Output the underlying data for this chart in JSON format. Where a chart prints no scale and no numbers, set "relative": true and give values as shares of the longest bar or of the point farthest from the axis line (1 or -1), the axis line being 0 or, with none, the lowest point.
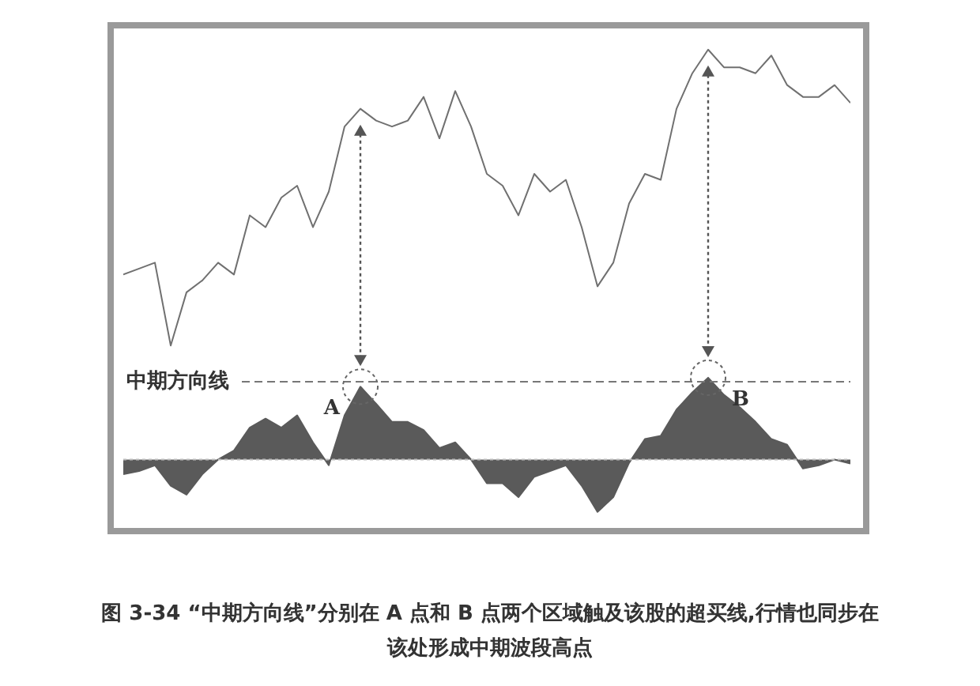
{
  "chart_data": [
    {
      "type": "line",
      "relative": true,
      "title": "图 3-34 “中期方向线”分别在 A 点和 B 点两个区域触及该股的超买线,行情也同步在该处形成中期波段高点",
      "categories": [
        null,
        null,
        null,
        null,
        null,
        null,
        null,
        null,
        null,
        null,
        null,
        null,
        null,
        null,
        null,
        null,
        null,
        null,
        null,
        null,
        null,
        null,
        null,
        null,
        null,
        null,
        null,
        null,
        null,
        null,
        null,
        null,
        null,
        null,
        null,
        null,
        null,
        null,
        null,
        null,
        null,
        null,
        null,
        null,
        null,
        null,
        null
      ],
      "series": [
        {
          "color": "#707070",
          "values": [
            0.24,
            0.26,
            0.28,
            0,
            0.18,
            0.22,
            0.28,
            0.24,
            0.44,
            0.4,
            0.5,
            0.54,
            0.4,
            0.52,
            0.74,
            0.8,
            0.76,
            0.74,
            0.76,
            0.84,
            0.7,
            0.86,
            0.74,
            0.58,
            0.54,
            0.44,
            0.58,
            0.52,
            0.56,
            0.4,
            0.2,
            0.28,
            0.48,
            0.58,
            0.56,
            0.8,
            0.92,
            1,
            0.94,
            0.94,
            0.92,
            0.98,
            0.88,
            0.84,
            0.84,
            0.88,
            0.82
          ]
        }
      ],
      "legend": false
    },
    {
      "type": "area",
      "relative": true,
      "categories": [
        null,
        null,
        null,
        null,
        null,
        null,
        null,
        null,
        null,
        null,
        null,
        null,
        null,
        null,
        null,
        null,
        null,
        null,
        null,
        null,
        null,
        null,
        null,
        null,
        null,
        null,
        null,
        null,
        null,
        null,
        null,
        null,
        null,
        null,
        null,
        null,
        null,
        null,
        null,
        null,
        null,
        null,
        null,
        null,
        null,
        null,
        null
      ],
      "series": [
        {
          "color": "#5a5a5a",
          "values": [
            -0.18,
            -0.14,
            -0.07,
            -0.32,
            -0.43,
            -0.18,
            0,
            0.11,
            0.39,
            0.5,
            0.39,
            0.54,
            0.21,
            -0.07,
            0.54,
            0.89,
            0.68,
            0.46,
            0.46,
            0.36,
            0.14,
            0.21,
            0,
            -0.29,
            -0.29,
            -0.46,
            -0.21,
            -0.14,
            -0.07,
            -0.32,
            -0.64,
            -0.46,
            -0.04,
            0.25,
            0.29,
            0.61,
            0.82,
            1,
            0.79,
            0.64,
            0.46,
            0.25,
            0.18,
            -0.11,
            -0.07,
            0,
            -0.05
          ]
        }
      ],
      "ref_lines": [
        {
          "axis": "y",
          "value": 0.95,
          "label": "中期方向线",
          "line_style": "dashed"
        },
        {
          "axis": "y",
          "value": 0,
          "color": "#bbbbbb",
          "line_style": "dotted"
        }
      ],
      "annotations": [
        {
          "text": "A",
          "y": 0.89
        },
        {
          "text": "B",
          "y": 1
        }
      ],
      "legend": false
    }
  ]
}
